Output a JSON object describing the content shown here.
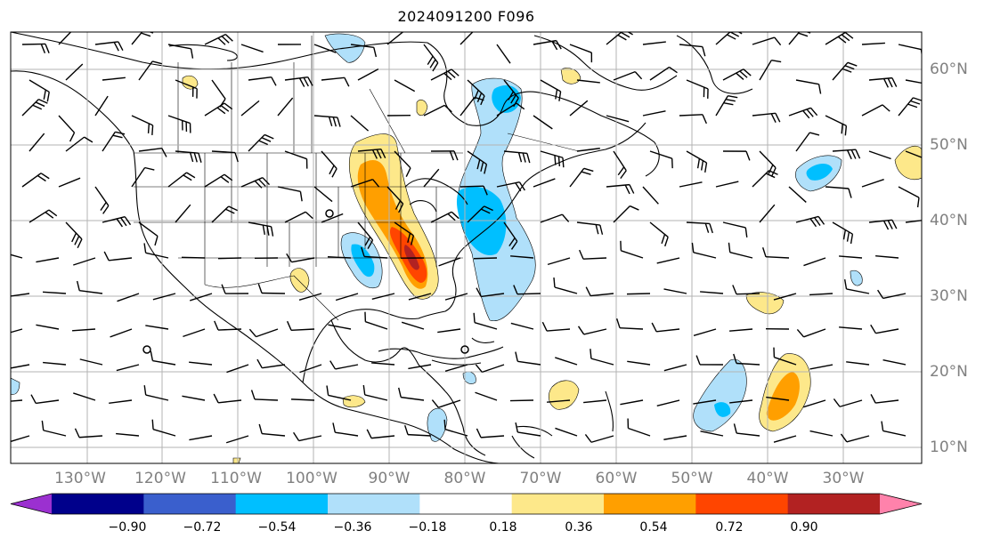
{
  "title": "2024091200 F096",
  "lon_labels": [
    "130°W",
    "120°W",
    "110°W",
    "100°W",
    "90°W",
    "80°W",
    "70°W",
    "60°W",
    "50°W",
    "40°W",
    "30°W"
  ],
  "lat_labels": [
    "60°N",
    "50°N",
    "40°N",
    "30°N",
    "20°N",
    "10°N"
  ],
  "colorbar": {
    "tick_labels": [
      "−0.90",
      "−0.72",
      "−0.54",
      "−0.36",
      "−0.18",
      "0.18",
      "0.36",
      "0.54",
      "0.72",
      "0.90"
    ],
    "colors": [
      "#9b30d0",
      "#00008b",
      "#3a5fcd",
      "#00bfff",
      "#b0e0fa",
      "#ffffff",
      "#fde88a",
      "#ff9f00",
      "#ff4500",
      "#b22222",
      "#ff82ab"
    ]
  },
  "layers": {
    "coastlines": "coastlines",
    "borders": "state-borders",
    "wind_barbs": "wind-barbs",
    "anomaly_fill": "anomaly-contours"
  }
}
